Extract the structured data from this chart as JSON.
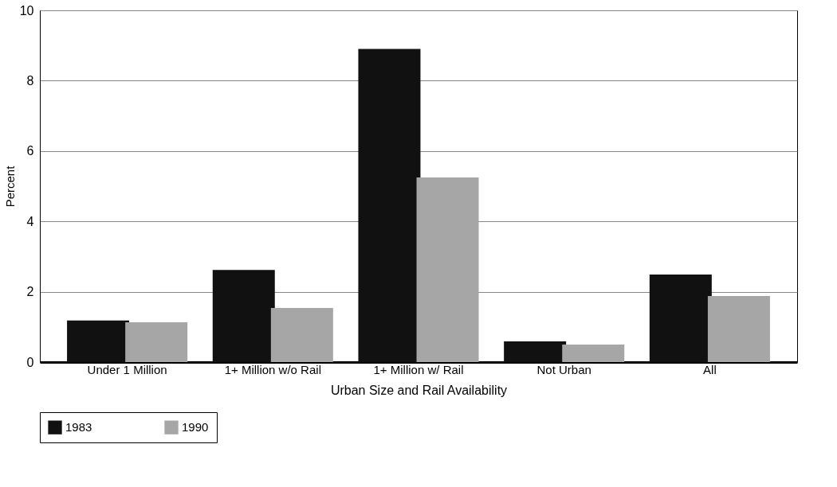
{
  "chart_data": {
    "type": "bar",
    "xlabel": "Urban Size and Rail Availability",
    "ylabel": "Percent",
    "categories": [
      "Under 1 Million",
      "1+ Million w/o Rail",
      "1+ Million w/ Rail",
      "Not Urban",
      "All"
    ],
    "series": [
      {
        "name": "1983",
        "color": "#111111",
        "values": [
          1.18,
          2.62,
          8.9,
          0.59,
          2.49
        ]
      },
      {
        "name": "1990",
        "color": "#a6a6a6",
        "values": [
          1.13,
          1.54,
          5.25,
          0.5,
          1.88
        ]
      }
    ],
    "ylim": [
      0,
      10
    ],
    "yticks": [
      0,
      2,
      4,
      6,
      8,
      10
    ],
    "grid": "y",
    "legend": "bottom"
  }
}
